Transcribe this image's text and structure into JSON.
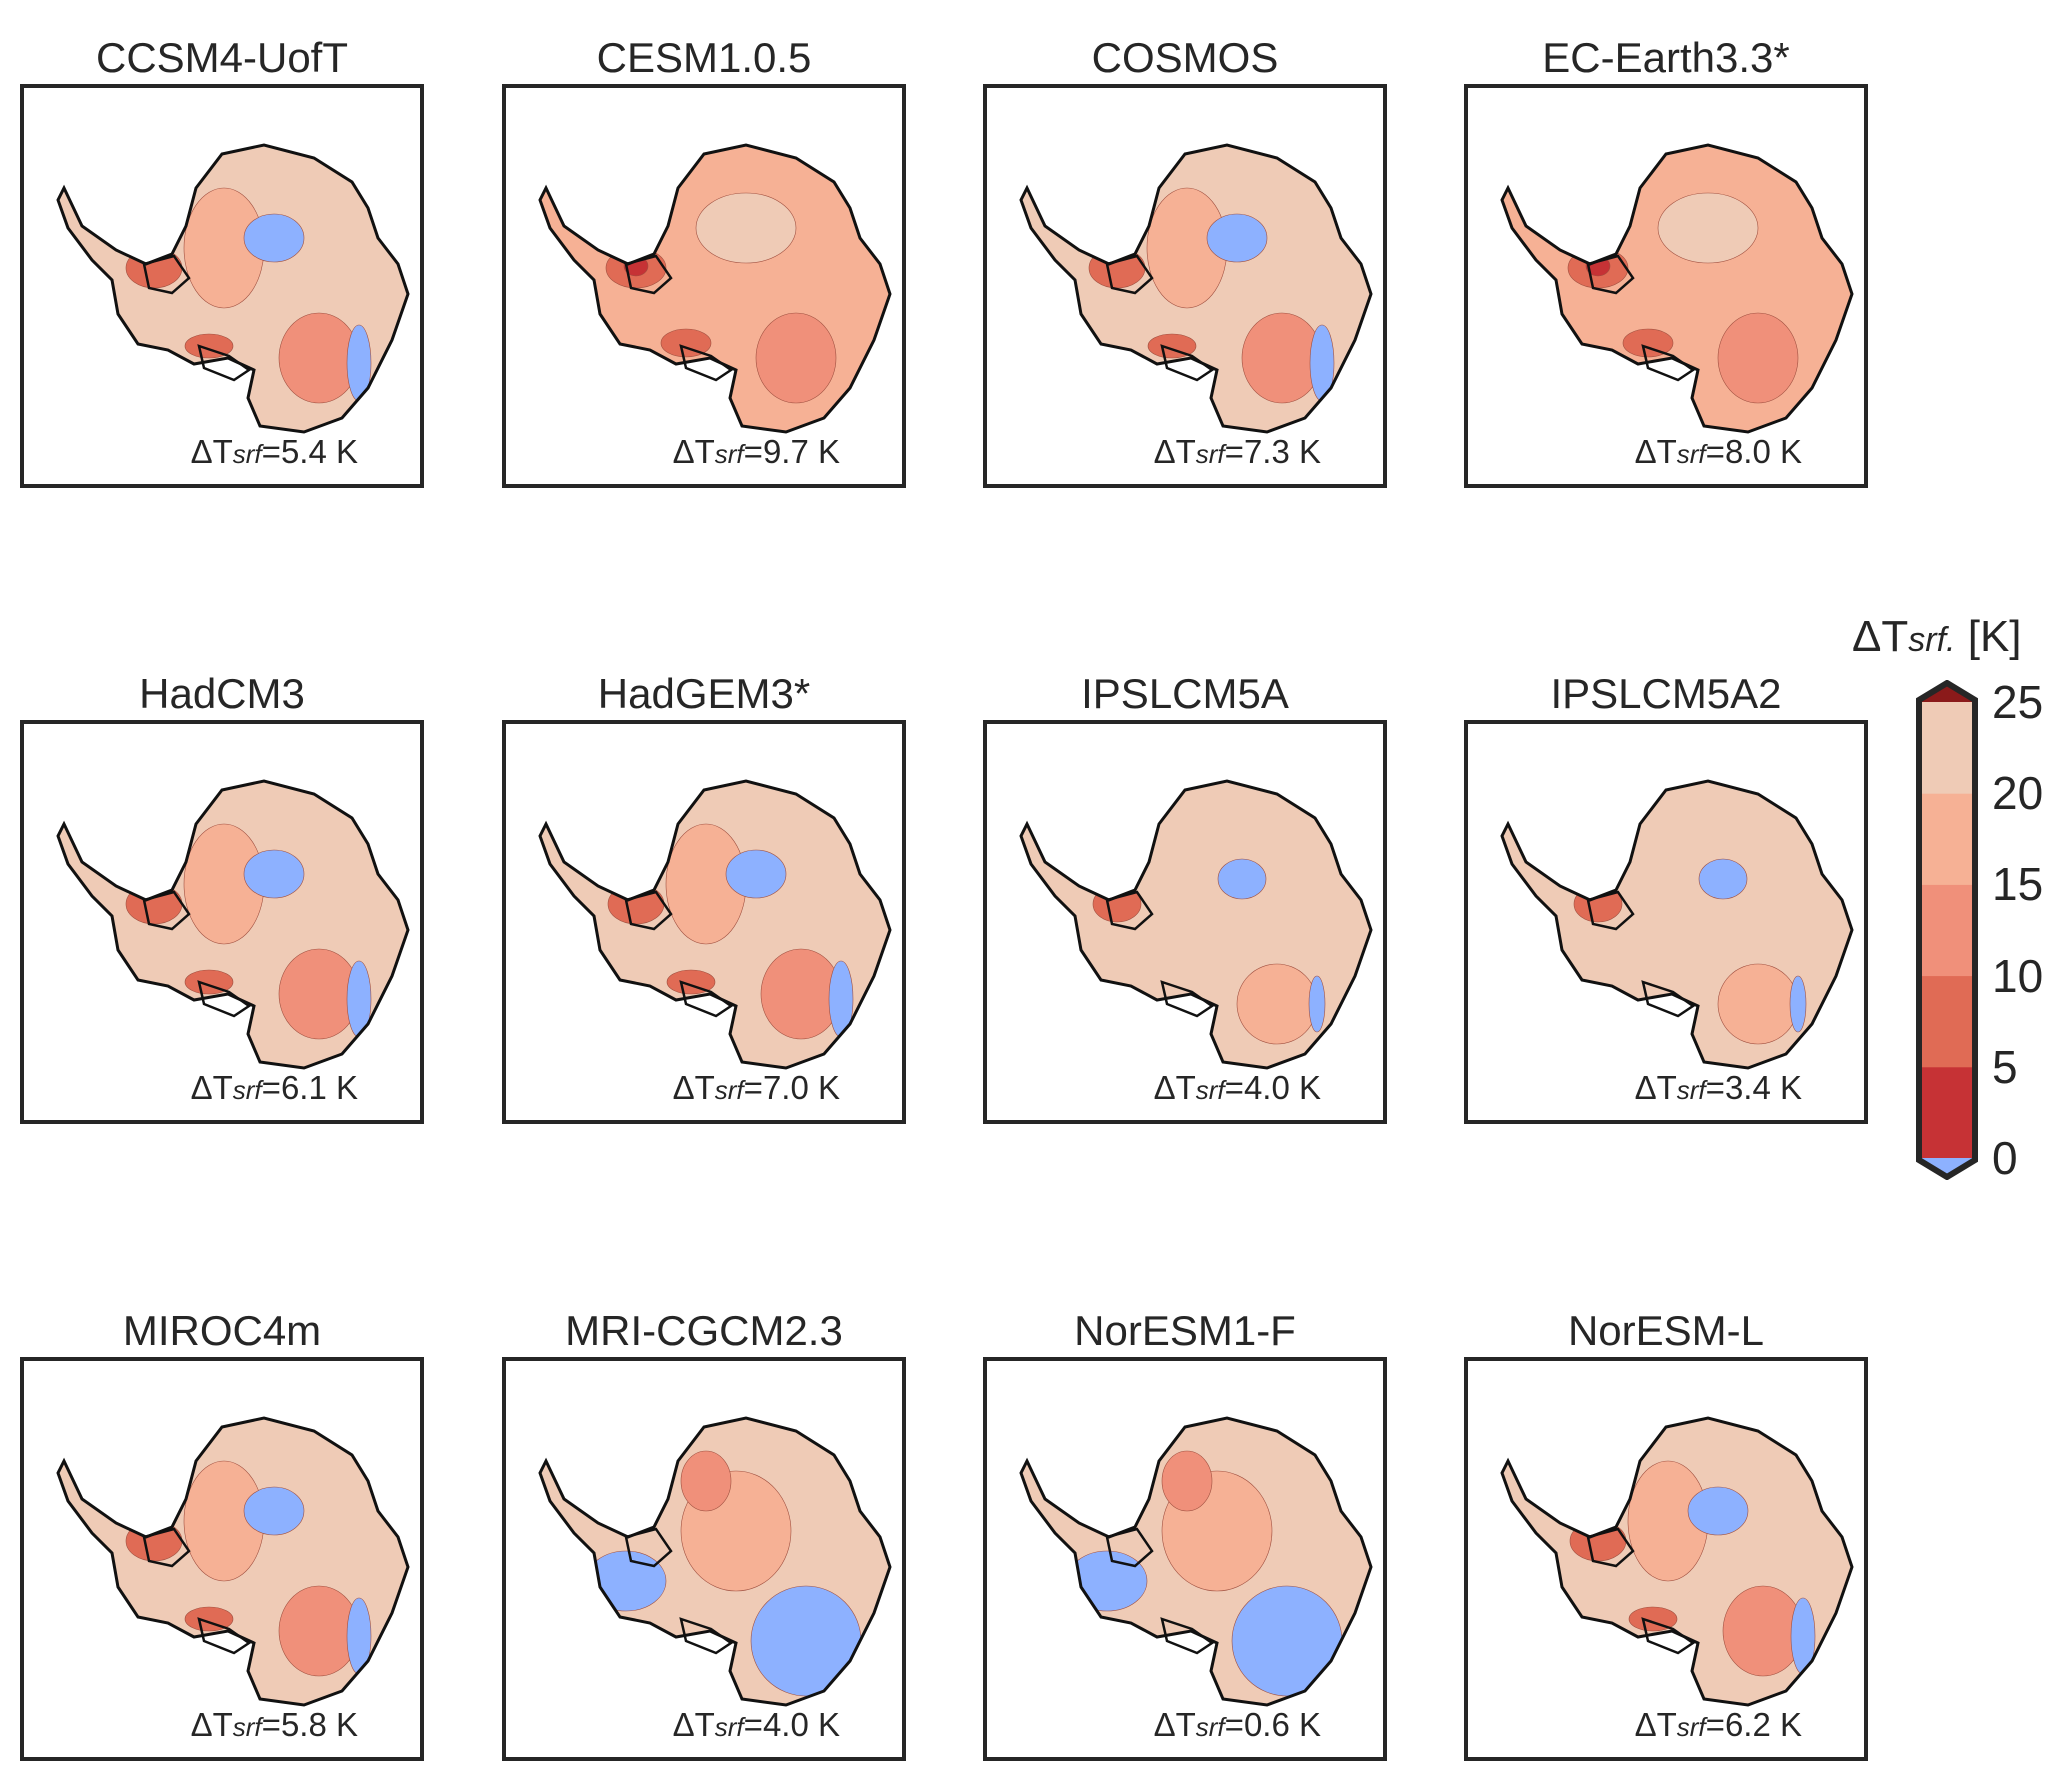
{
  "panels": [
    {
      "title": "CCSM4-UofT",
      "value": "5.4 K",
      "style": "mixed"
    },
    {
      "title": "CESM1.0.5",
      "value": "9.7 K",
      "style": "warm"
    },
    {
      "title": "COSMOS",
      "value": "7.3 K",
      "style": "mixed"
    },
    {
      "title": "EC-Earth3.3*",
      "value": "8.0 K",
      "style": "warm"
    },
    {
      "title": "HadCM3",
      "value": "6.1 K",
      "style": "mixed"
    },
    {
      "title": "HadGEM3*",
      "value": "7.0 K",
      "style": "mixed"
    },
    {
      "title": "IPSLCM5A",
      "value": "4.0 K",
      "style": "cool"
    },
    {
      "title": "IPSLCM5A2",
      "value": "3.4 K",
      "style": "cool"
    },
    {
      "title": "MIROC4m",
      "value": "5.8 K",
      "style": "mixed"
    },
    {
      "title": "MRI-CGCM2.3",
      "value": "4.0 K",
      "style": "blue"
    },
    {
      "title": "NorESM1-F",
      "value": "0.6 K",
      "style": "blue"
    },
    {
      "title": "NorESM-L",
      "value": "6.2 K",
      "style": "mixed"
    }
  ],
  "label": {
    "delta": "ΔT",
    "sub": "srf",
    "eq": "="
  },
  "colorbar": {
    "title_delta": "ΔT",
    "title_sub": "srf.",
    "title_unit": " [K]",
    "ticks": [
      "25",
      "20",
      "15",
      "10",
      "5",
      "0"
    ],
    "bins": [
      "#c63235",
      "#e06b55",
      "#f0907a",
      "#f6b195",
      "#efcbb6"
    ],
    "over_color": "#8b1a1a",
    "under_color": "#8db1ff"
  }
}
